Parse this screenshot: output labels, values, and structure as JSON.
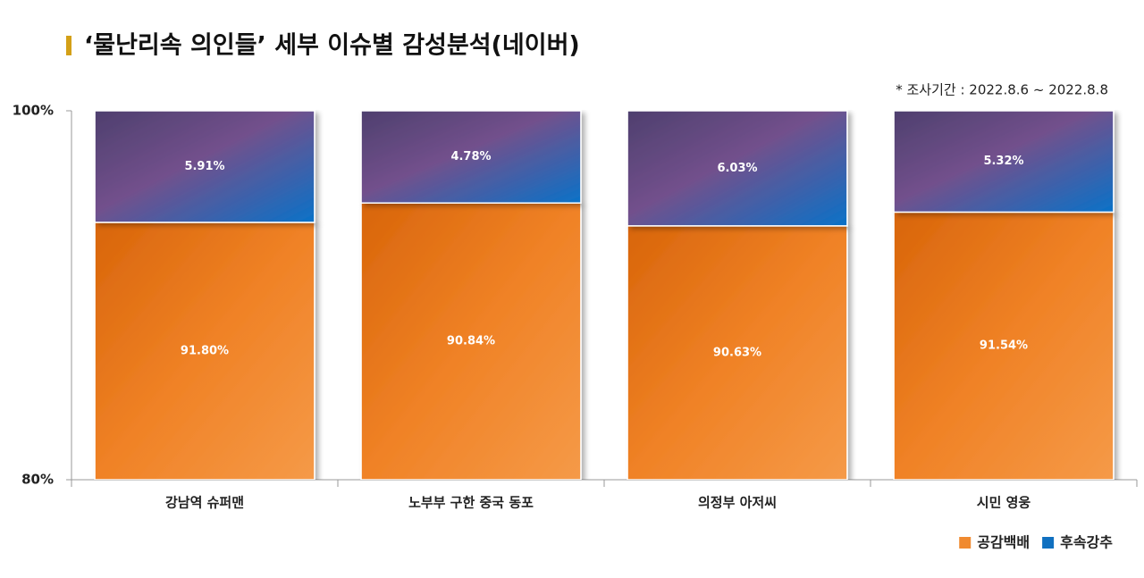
{
  "chart_data": {
    "type": "bar",
    "stacking": "percent",
    "title": "‘물난리속 의인들’ 세부 이슈별 감성분석(네이버)",
    "subtitle": "* 조사기간 : 2022.8.6 ~ 2022.8.8",
    "categories": [
      "강남역 슈퍼맨",
      "노부부 구한 중국 동포",
      "의정부 아저씨",
      "시민 영웅"
    ],
    "series": [
      {
        "name": "공감백배",
        "color": "#f08a30",
        "values": [
          91.8,
          90.84,
          90.63,
          91.54
        ],
        "value_labels": [
          "91.80%",
          "90.84%",
          "90.63%",
          "91.54%"
        ]
      },
      {
        "name": "후속강추",
        "color": "#1070c0",
        "values": [
          5.91,
          4.78,
          6.03,
          5.32
        ],
        "value_labels": [
          "5.91%",
          "4.78%",
          "6.03%",
          "5.32%"
        ]
      }
    ],
    "ylim": [
      80,
      100
    ],
    "yticks": [
      {
        "value": 80,
        "label": "80%"
      },
      {
        "value": 100,
        "label": "100%"
      }
    ],
    "legend": "bottom-right"
  }
}
